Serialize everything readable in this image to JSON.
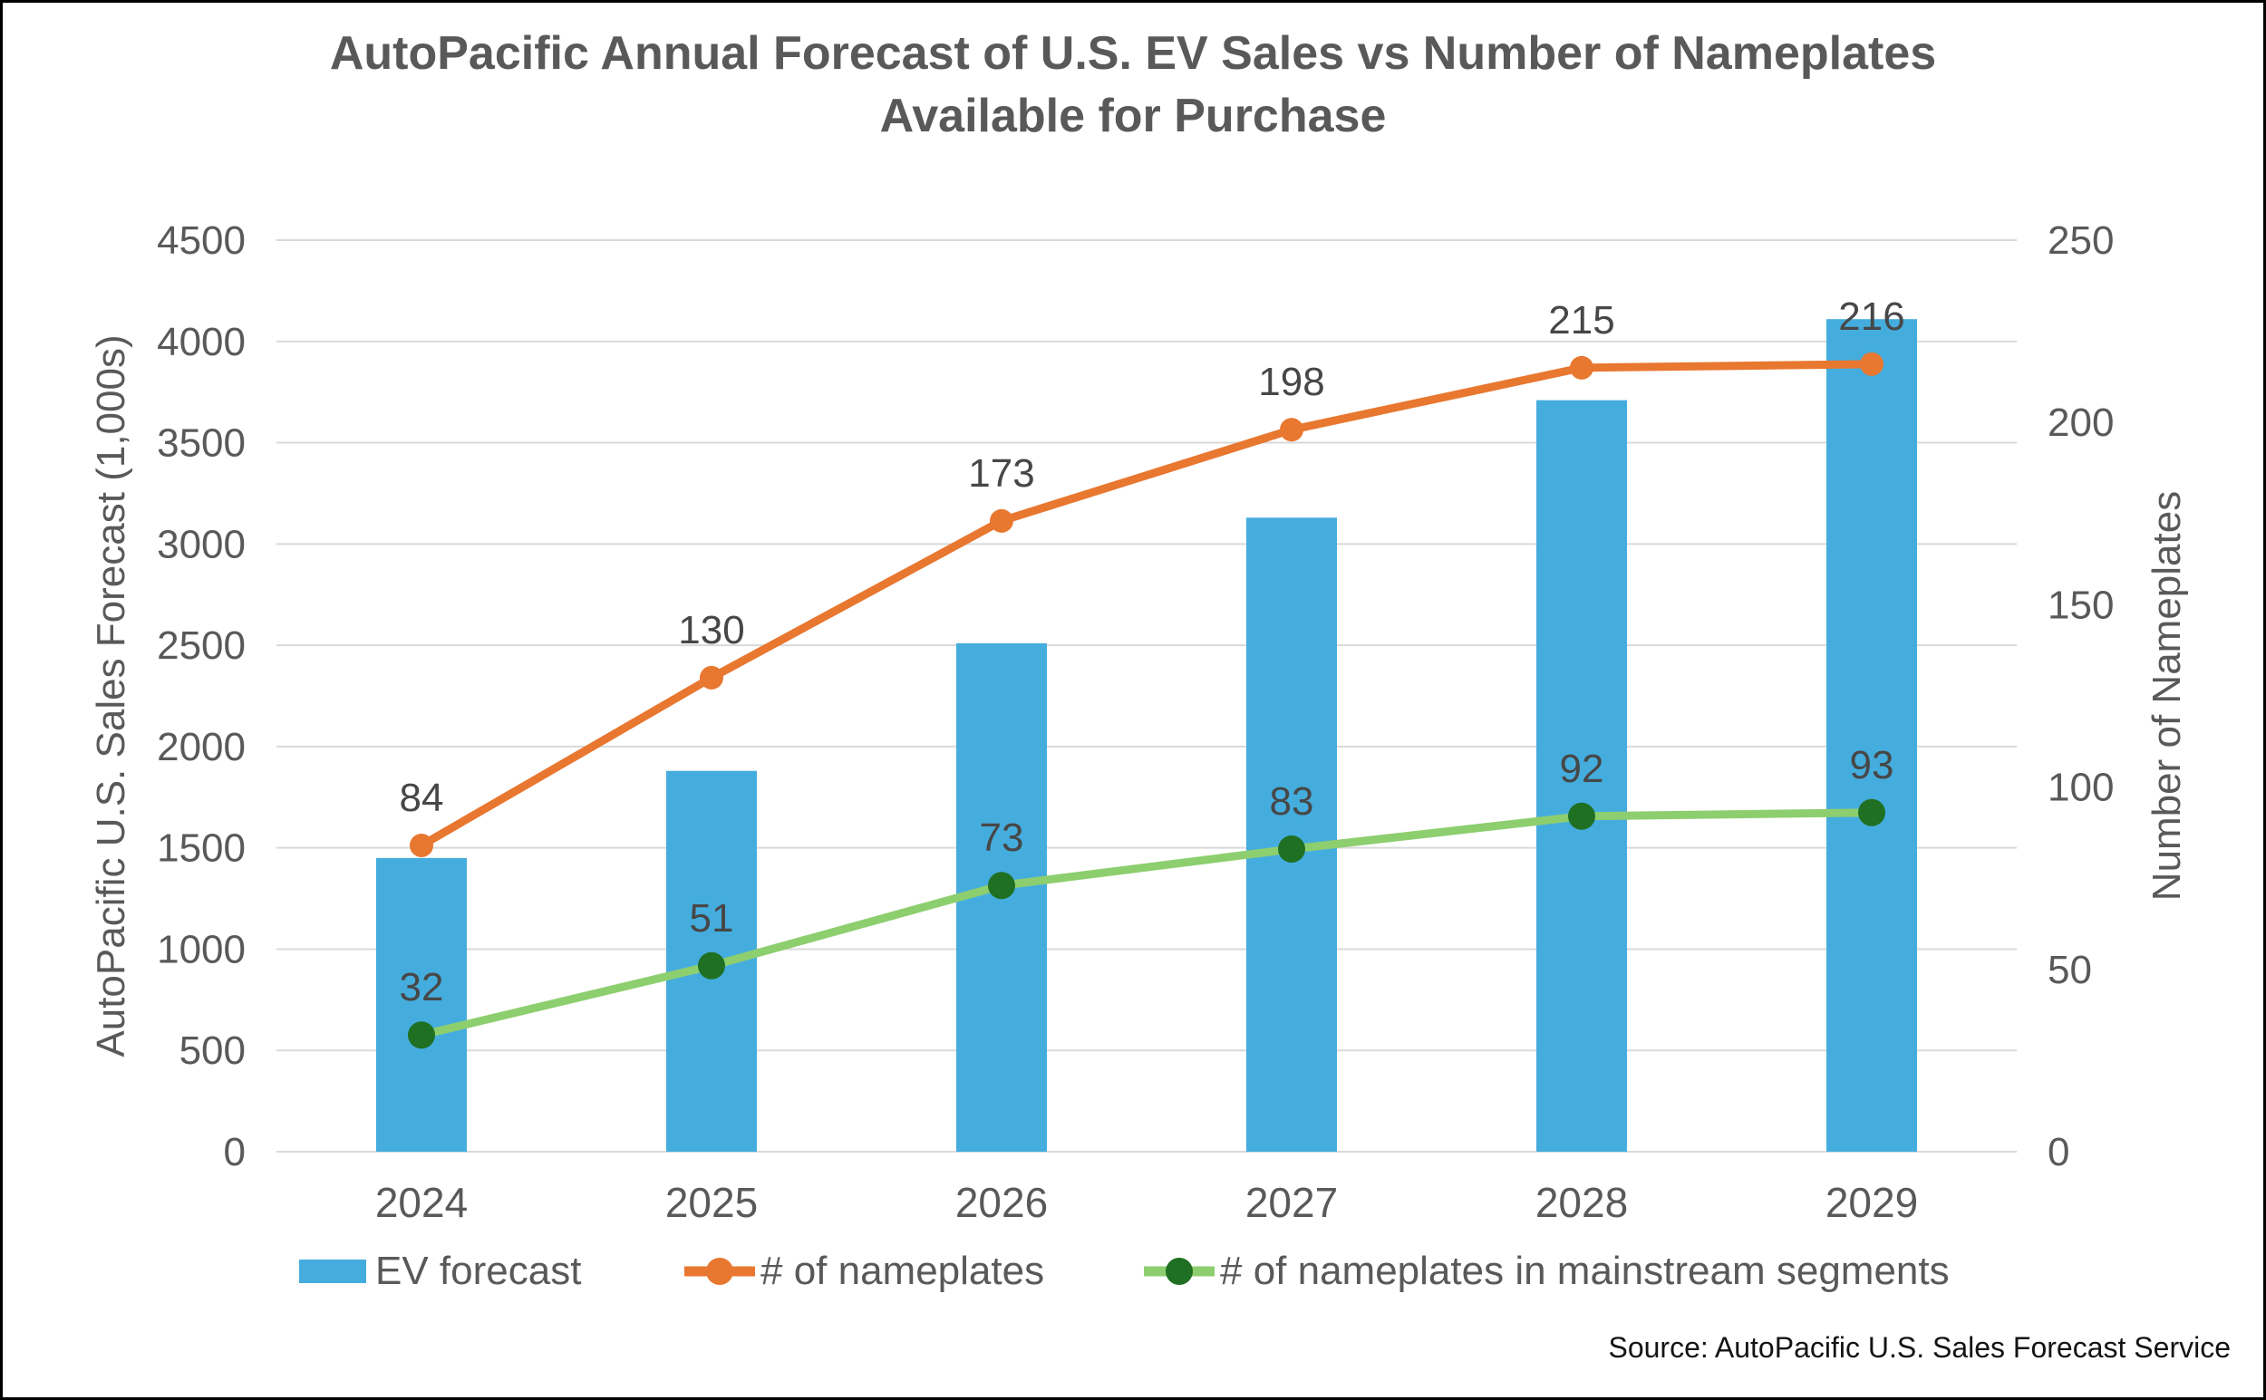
{
  "title": {
    "line1": "AutoPacific Annual Forecast of U.S. EV Sales vs Number of Nameplates",
    "line2": "Available for Purchase"
  },
  "source": "Source: AutoPacific U.S. Sales Forecast Service",
  "colors": {
    "bar": "#45ADDE",
    "nameplates_line": "#E87730",
    "mainstream_line": "#8DCE6F",
    "mainstream_marker": "#1F7022",
    "grid": "#D9D9D9",
    "axis_text": "#595959",
    "data_label": "#474747"
  },
  "chart_data": {
    "type": "bar+line combo",
    "categories": [
      "2024",
      "2025",
      "2026",
      "2027",
      "2028",
      "2029"
    ],
    "series": [
      {
        "name": "EV forecast",
        "type": "bar",
        "axis": "left",
        "values": [
          1450,
          1880,
          2510,
          3130,
          3710,
          4110
        ],
        "data_labels": false
      },
      {
        "name": "# of nameplates",
        "type": "line",
        "axis": "right",
        "values": [
          84,
          130,
          173,
          198,
          215,
          216
        ],
        "data_labels": true
      },
      {
        "name": "# of nameplates in mainstream segments",
        "type": "line",
        "axis": "right",
        "values": [
          32,
          51,
          73,
          83,
          92,
          93
        ],
        "data_labels": true
      }
    ],
    "left_axis": {
      "title": "AutoPacific U.S. Sales Forecast (1,000s)",
      "min": 0,
      "max": 4500,
      "step": 500
    },
    "right_axis": {
      "title": "Number of Nameplates",
      "min": 0,
      "max": 250,
      "step": 50
    },
    "grid": true,
    "legend_position": "bottom"
  },
  "legend": {
    "items": [
      {
        "label": "EV forecast"
      },
      {
        "label": "# of nameplates"
      },
      {
        "label": "# of nameplates in mainstream segments"
      }
    ]
  }
}
